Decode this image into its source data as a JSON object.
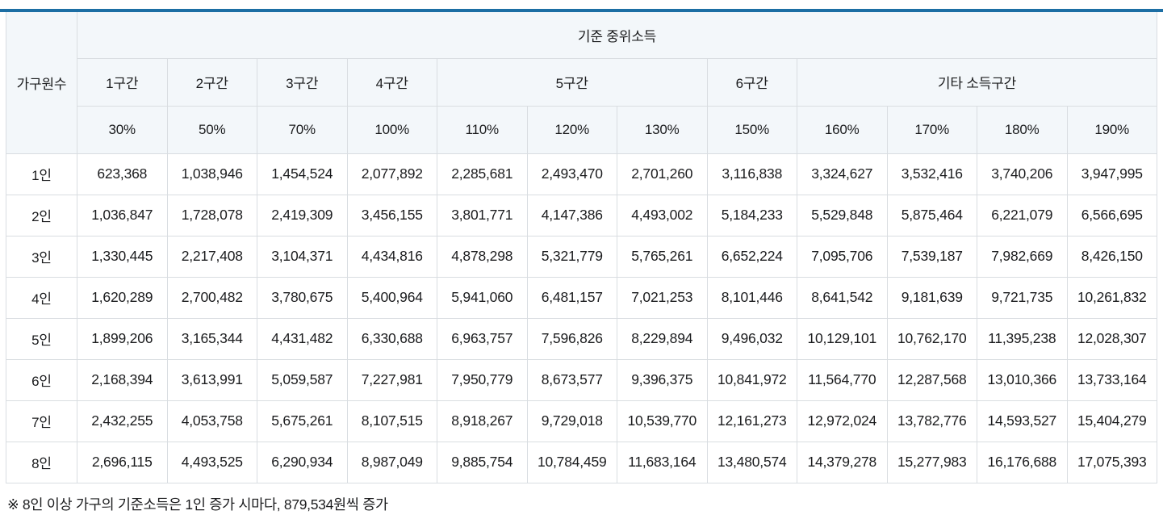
{
  "colors": {
    "accent_line": "#1c6ea4",
    "header_bg": "#f3f7fa",
    "border": "#d9dde1",
    "text": "#1b1c1e"
  },
  "table": {
    "corner_header": "가구원수",
    "top_header": "기준 중위소득",
    "group_headers": [
      {
        "label": "1구간",
        "colspan": 1
      },
      {
        "label": "2구간",
        "colspan": 1
      },
      {
        "label": "3구간",
        "colspan": 1
      },
      {
        "label": "4구간",
        "colspan": 1
      },
      {
        "label": "5구간",
        "colspan": 3
      },
      {
        "label": "6구간",
        "colspan": 1
      },
      {
        "label": "기타 소득구간",
        "colspan": 4
      }
    ],
    "percent_headers": [
      "30%",
      "50%",
      "70%",
      "100%",
      "110%",
      "120%",
      "130%",
      "150%",
      "160%",
      "170%",
      "180%",
      "190%"
    ],
    "rows": [
      {
        "label": "1인",
        "values": [
          "623,368",
          "1,038,946",
          "1,454,524",
          "2,077,892",
          "2,285,681",
          "2,493,470",
          "2,701,260",
          "3,116,838",
          "3,324,627",
          "3,532,416",
          "3,740,206",
          "3,947,995"
        ]
      },
      {
        "label": "2인",
        "values": [
          "1,036,847",
          "1,728,078",
          "2,419,309",
          "3,456,155",
          "3,801,771",
          "4,147,386",
          "4,493,002",
          "5,184,233",
          "5,529,848",
          "5,875,464",
          "6,221,079",
          "6,566,695"
        ]
      },
      {
        "label": "3인",
        "values": [
          "1,330,445",
          "2,217,408",
          "3,104,371",
          "4,434,816",
          "4,878,298",
          "5,321,779",
          "5,765,261",
          "6,652,224",
          "7,095,706",
          "7,539,187",
          "7,982,669",
          "8,426,150"
        ]
      },
      {
        "label": "4인",
        "values": [
          "1,620,289",
          "2,700,482",
          "3,780,675",
          "5,400,964",
          "5,941,060",
          "6,481,157",
          "7,021,253",
          "8,101,446",
          "8,641,542",
          "9,181,639",
          "9,721,735",
          "10,261,832"
        ]
      },
      {
        "label": "5인",
        "values": [
          "1,899,206",
          "3,165,344",
          "4,431,482",
          "6,330,688",
          "6,963,757",
          "7,596,826",
          "8,229,894",
          "9,496,032",
          "10,129,101",
          "10,762,170",
          "11,395,238",
          "12,028,307"
        ]
      },
      {
        "label": "6인",
        "values": [
          "2,168,394",
          "3,613,991",
          "5,059,587",
          "7,227,981",
          "7,950,779",
          "8,673,577",
          "9,396,375",
          "10,841,972",
          "11,564,770",
          "12,287,568",
          "13,010,366",
          "13,733,164"
        ]
      },
      {
        "label": "7인",
        "values": [
          "2,432,255",
          "4,053,758",
          "5,675,261",
          "8,107,515",
          "8,918,267",
          "9,729,018",
          "10,539,770",
          "12,161,273",
          "12,972,024",
          "13,782,776",
          "14,593,527",
          "15,404,279"
        ]
      },
      {
        "label": "8인",
        "values": [
          "2,696,115",
          "4,493,525",
          "6,290,934",
          "8,987,049",
          "9,885,754",
          "10,784,459",
          "11,683,164",
          "13,480,574",
          "14,379,278",
          "15,277,983",
          "16,176,688",
          "17,075,393"
        ]
      }
    ],
    "footnote": "※ 8인 이상 가구의 기준소득은 1인 증가 시마다, 879,534원씩 증가"
  }
}
